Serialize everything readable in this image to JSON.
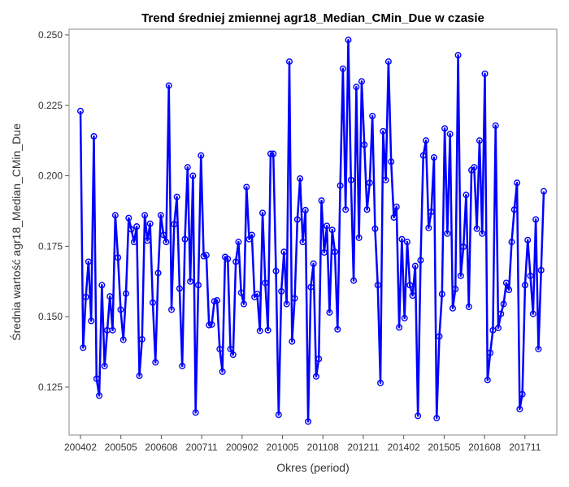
{
  "chart_data": {
    "type": "line",
    "title": "Trend średniej zmiennej agr18_Median_CMin_Due w czasie",
    "xlabel": "Okres (period)",
    "ylabel": "Średnia wartość agr18_Median_CMin_Due",
    "ylim": [
      0.108,
      0.252
    ],
    "yticks": [
      "0.125",
      "0.150",
      "0.175",
      "0.200",
      "0.225",
      "0.250"
    ],
    "xticks": [
      "200402",
      "200505",
      "200608",
      "200711",
      "200902",
      "201005",
      "201108",
      "201211",
      "201402",
      "201505",
      "201608",
      "201711"
    ],
    "x_first_period": "200402",
    "x_last_period": "201806",
    "grid": false,
    "legend": "none",
    "color": "#0000ff",
    "series": [
      {
        "values": [
          0.223,
          0.139,
          0.157,
          0.1695,
          0.1485,
          0.214,
          0.128,
          0.122,
          0.1612,
          0.1325,
          0.1452,
          0.1572,
          0.1452,
          0.186,
          0.171,
          0.1525,
          0.1418,
          0.1582,
          0.185,
          0.181,
          0.1765,
          0.182,
          0.129,
          0.142,
          0.186,
          0.177,
          0.183,
          0.155,
          0.1338,
          0.1655,
          0.186,
          0.179,
          0.1765,
          0.232,
          0.1525,
          0.1828,
          0.1925,
          0.16,
          0.1325,
          0.1775,
          0.203,
          0.1625,
          0.2,
          0.116,
          0.1612,
          0.2072,
          0.1715,
          0.1718,
          0.147,
          0.1472,
          0.1555,
          0.1558,
          0.1385,
          0.1305,
          0.1712,
          0.1705,
          0.1385,
          0.1365,
          0.1695,
          0.1765,
          0.1585,
          0.1545,
          0.196,
          0.1775,
          0.179,
          0.157,
          0.158,
          0.145,
          0.1868,
          0.162,
          0.1452,
          0.2078,
          0.2078,
          0.1662,
          0.1152,
          0.159,
          0.173,
          0.1545,
          0.2405,
          0.1412,
          0.1565,
          0.1845,
          0.199,
          0.1765,
          0.1878,
          0.1128,
          0.1605,
          0.1688,
          0.1288,
          0.135,
          0.1912,
          0.1728,
          0.1822,
          0.1515,
          0.1808,
          0.173,
          0.1455,
          0.1965,
          0.238,
          0.188,
          0.2482,
          0.1985,
          0.1628,
          0.2315,
          0.178,
          0.2335,
          0.211,
          0.188,
          0.1975,
          0.2212,
          0.1812,
          0.1612,
          0.1265,
          0.2158,
          0.1985,
          0.2405,
          0.205,
          0.1852,
          0.189,
          0.1462,
          0.1775,
          0.1495,
          0.1765,
          0.1612,
          0.1575,
          0.168,
          0.1148,
          0.17,
          0.2072,
          0.2125,
          0.1815,
          0.1872,
          0.2065,
          0.114,
          0.143,
          0.158,
          0.2168,
          0.1795,
          0.2148,
          0.153,
          0.1598,
          0.2428,
          0.1645,
          0.1748,
          0.1932,
          0.1535,
          0.202,
          0.203,
          0.1812,
          0.2125,
          0.1795,
          0.2362,
          0.1275,
          0.1372,
          0.1452,
          0.2178,
          0.146,
          0.151,
          0.1545,
          0.162,
          0.1595,
          0.1765,
          0.188,
          0.1975,
          0.1172,
          0.1225,
          0.1612,
          0.1772,
          0.1645,
          0.151,
          0.1845,
          0.1385,
          0.1665,
          0.1945
        ]
      }
    ]
  }
}
